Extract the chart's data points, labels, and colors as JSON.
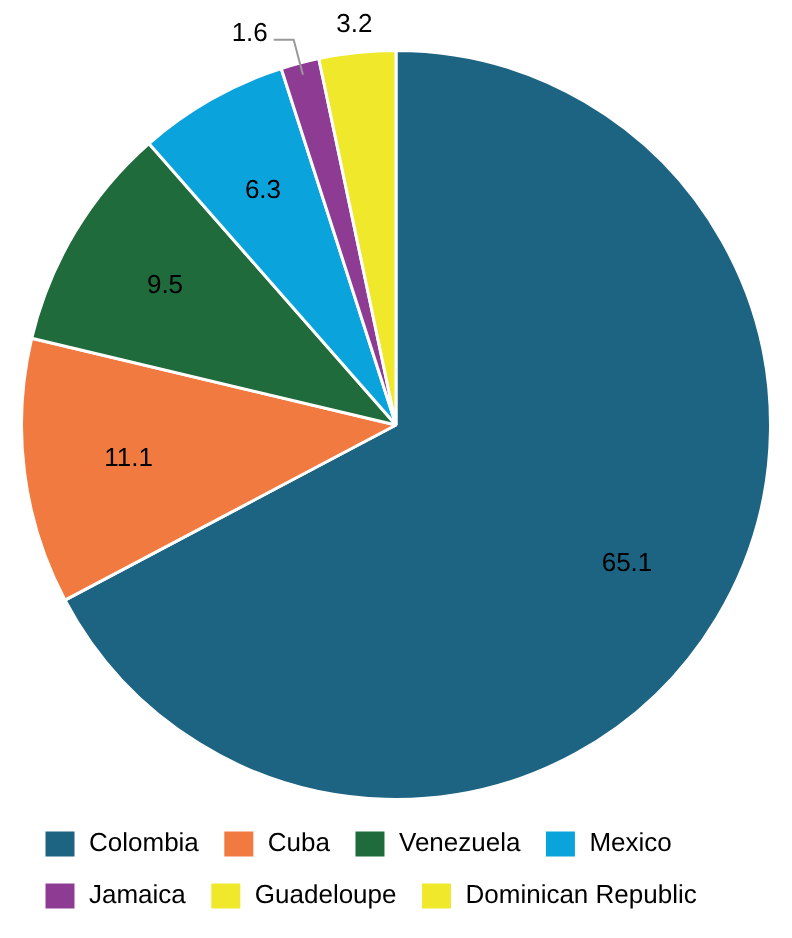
{
  "chart_data": {
    "type": "pie",
    "categories": [
      "Colombia",
      "Cuba",
      "Venezuela",
      "Mexico",
      "Jamaica",
      "Guadeloupe",
      "Dominican Republic"
    ],
    "values": [
      65.1,
      11.1,
      9.5,
      6.3,
      1.6,
      null,
      3.2
    ],
    "colors": [
      "#1d6382",
      "#f07a40",
      "#1f6b3b",
      "#0ba3db",
      "#8e3c93",
      "#efe82b",
      "#efe82b"
    ],
    "data_labels": true,
    "legend": "bottom"
  }
}
